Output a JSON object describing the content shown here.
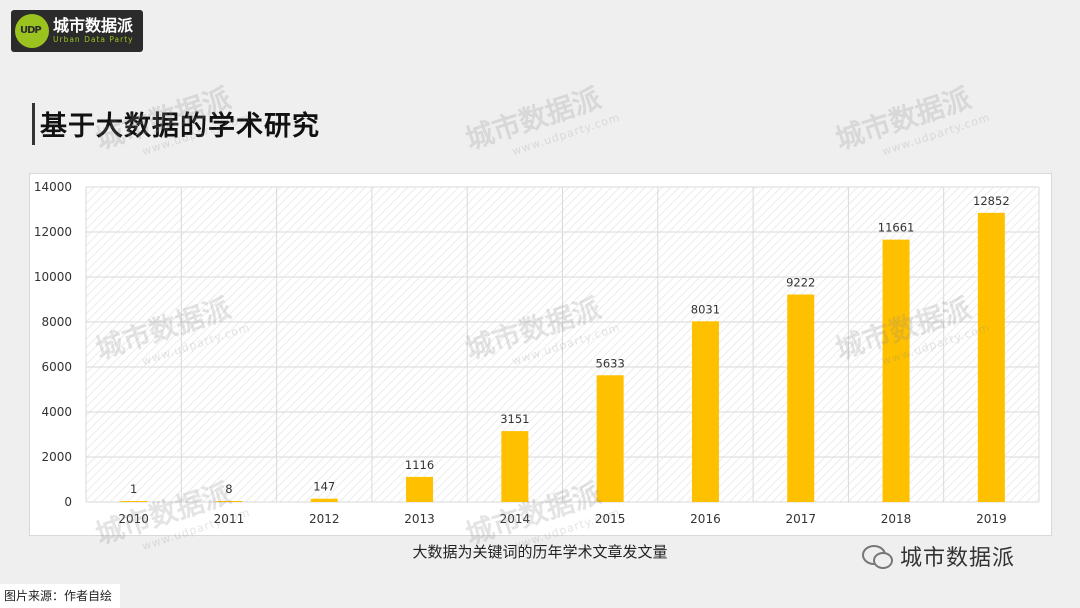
{
  "logo": {
    "icon": "urban-data-party-logo",
    "name_cn": "城市数据派",
    "name_en": "Urban Data Party"
  },
  "title": "基于大数据的学术研究",
  "watermark": {
    "text": "城市数据派",
    "url": "www.udparty.com"
  },
  "chart_data": {
    "type": "bar",
    "categories": [
      "2010",
      "2011",
      "2012",
      "2013",
      "2014",
      "2015",
      "2016",
      "2017",
      "2018",
      "2019"
    ],
    "values": [
      1,
      8,
      147,
      1116,
      3151,
      5633,
      8031,
      9222,
      11661,
      12852
    ],
    "ylim": [
      0,
      14000
    ],
    "yticks": [
      0,
      2000,
      4000,
      6000,
      8000,
      10000,
      12000,
      14000
    ],
    "grid": true,
    "legend": "none",
    "bar_color": "#ffc000",
    "title": "",
    "xlabel": "",
    "ylabel": ""
  },
  "caption": "大数据为关键词的历年学术文章发文量",
  "source": "图片来源：作者自绘",
  "wechat": {
    "icon": "wechat-icon",
    "label": "城市数据派"
  }
}
